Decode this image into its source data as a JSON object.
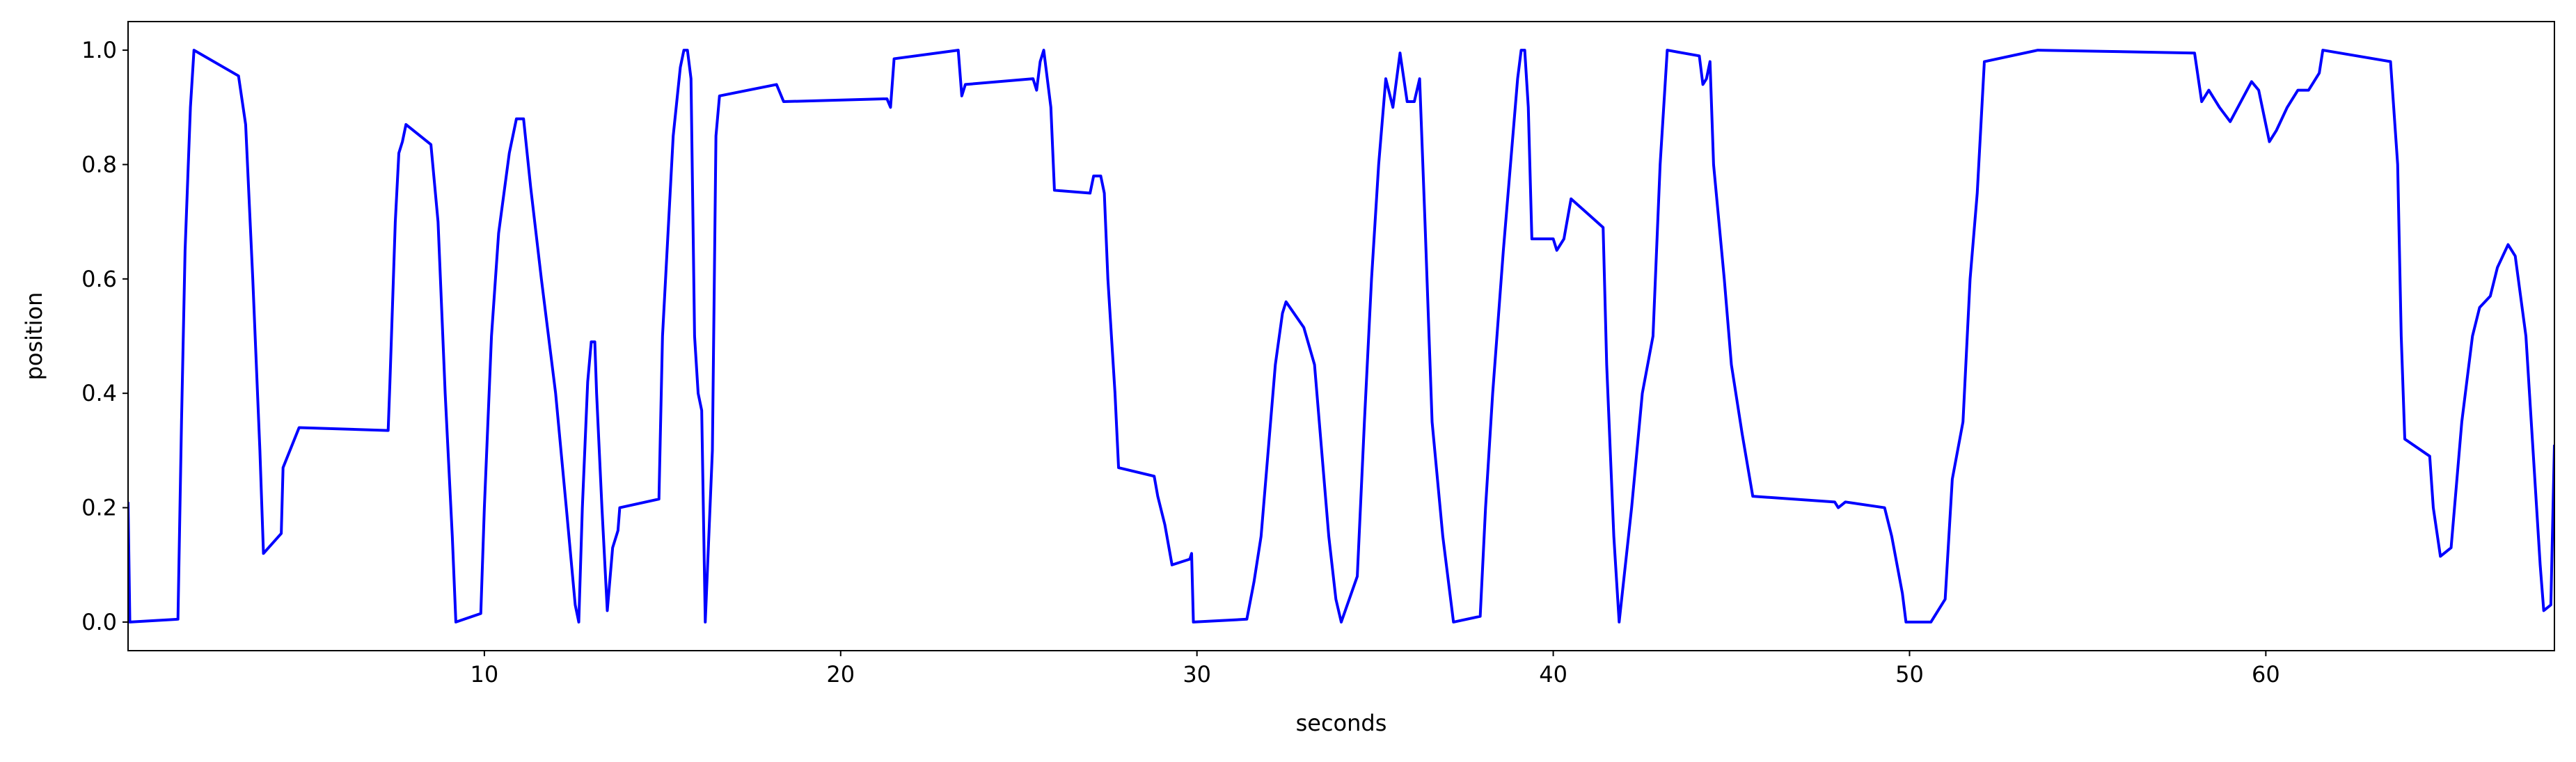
{
  "chart_data": {
    "type": "line",
    "xlabel": "seconds",
    "ylabel": "position",
    "xlim": [
      0,
      68.1
    ],
    "ylim": [
      -0.05,
      1.05
    ],
    "xticks": [
      10,
      20,
      30,
      40,
      50,
      60
    ],
    "yticks": [
      {
        "value": 0,
        "label": "0.0"
      },
      {
        "value": 0.2,
        "label": "0.2"
      },
      {
        "value": 0.4,
        "label": "0.4"
      },
      {
        "value": 0.6,
        "label": "0.6"
      },
      {
        "value": 0.8,
        "label": "0.8"
      },
      {
        "value": 1,
        "label": "1.0"
      }
    ],
    "grid": false,
    "series": [
      {
        "color": "#0000ff",
        "x": [
          0,
          0.05,
          1.4,
          1.5,
          1.6,
          1.75,
          1.85,
          3.1,
          3.3,
          3.5,
          3.7,
          3.8,
          4.3,
          4.35,
          4.8,
          7.3,
          7.35,
          7.5,
          7.6,
          7.7,
          7.8,
          8.5,
          8.7,
          8.9,
          9.1,
          9.2,
          9.9,
          10,
          10.2,
          10.4,
          10.7,
          10.9,
          11.1,
          11.3,
          11.6,
          12,
          12.3,
          12.55,
          12.65,
          12.75,
          12.9,
          13,
          13.1,
          13.15,
          13.3,
          13.45,
          13.6,
          13.75,
          13.8,
          14.9,
          15,
          15.3,
          15.5,
          15.6,
          15.7,
          15.8,
          15.9,
          16,
          16.1,
          16.2,
          16.4,
          16.5,
          16.6,
          18.2,
          18.4,
          21.3,
          21.4,
          21.5,
          23.3,
          23.4,
          23.5,
          25.4,
          25.5,
          25.6,
          25.7,
          25.9,
          26,
          27,
          27.1,
          27.3,
          27.4,
          27.5,
          27.7,
          27.8,
          28.8,
          28.9,
          29.1,
          29.3,
          29.8,
          29.85,
          29.9,
          31.4,
          31.6,
          31.8,
          32,
          32.2,
          32.4,
          32.5,
          33,
          33.3,
          33.5,
          33.7,
          33.9,
          34.05,
          34.5,
          34.7,
          34.9,
          35.1,
          35.3,
          35.5,
          35.7,
          35.9,
          36.1,
          36.25,
          36.4,
          36.6,
          36.9,
          37.1,
          37.2,
          37.95,
          38.1,
          38.3,
          38.6,
          38.8,
          39,
          39.1,
          39.2,
          39.3,
          39.4,
          40,
          40.1,
          40.3,
          40.5,
          41.4,
          41.5,
          41.7,
          41.85,
          42.2,
          42.5,
          42.8,
          43,
          43.2,
          44.1,
          44.2,
          44.3,
          44.4,
          44.5,
          44.8,
          45,
          45.3,
          45.6,
          47.9,
          48,
          48.2,
          49.3,
          49.5,
          49.8,
          49.9,
          50.6,
          51,
          51.2,
          51.5,
          51.7,
          51.9,
          52.1,
          53.6,
          58,
          58.2,
          58.4,
          58.7,
          59,
          59.3,
          59.6,
          59.8,
          60.1,
          60.3,
          60.6,
          60.9,
          61.2,
          61.5,
          61.6,
          63.5,
          63.7,
          63.8,
          63.9,
          64.6,
          64.7,
          64.9,
          65.2,
          65.5,
          65.8,
          66,
          66.3,
          66.5,
          66.8,
          67,
          67.3,
          67.5,
          67.7,
          67.8,
          68,
          68.1
        ],
        "values": [
          0.21,
          0,
          0.005,
          0.35,
          0.65,
          0.9,
          1,
          0.955,
          0.87,
          0.6,
          0.3,
          0.12,
          0.155,
          0.27,
          0.34,
          0.335,
          0.42,
          0.7,
          0.82,
          0.84,
          0.87,
          0.835,
          0.7,
          0.4,
          0.15,
          0,
          0.015,
          0.2,
          0.5,
          0.68,
          0.82,
          0.88,
          0.88,
          0.76,
          0.6,
          0.4,
          0.2,
          0.03,
          0,
          0.2,
          0.42,
          0.49,
          0.49,
          0.4,
          0.2,
          0.02,
          0.13,
          0.16,
          0.2,
          0.215,
          0.5,
          0.85,
          0.97,
          1,
          1,
          0.95,
          0.5,
          0.4,
          0.37,
          0,
          0.3,
          0.85,
          0.92,
          0.94,
          0.91,
          0.915,
          0.9,
          0.985,
          1,
          0.92,
          0.94,
          0.95,
          0.93,
          0.98,
          1,
          0.9,
          0.755,
          0.75,
          0.78,
          0.78,
          0.75,
          0.6,
          0.4,
          0.27,
          0.255,
          0.22,
          0.17,
          0.1,
          0.11,
          0.12,
          0,
          0.005,
          0.07,
          0.15,
          0.3,
          0.45,
          0.54,
          0.56,
          0.515,
          0.45,
          0.3,
          0.15,
          0.04,
          0,
          0.08,
          0.35,
          0.6,
          0.8,
          0.95,
          0.9,
          0.995,
          0.91,
          0.91,
          0.95,
          0.7,
          0.35,
          0.15,
          0.05,
          0,
          0.01,
          0.2,
          0.4,
          0.65,
          0.8,
          0.95,
          1,
          1,
          0.9,
          0.67,
          0.67,
          0.65,
          0.67,
          0.74,
          0.69,
          0.45,
          0.15,
          0,
          0.2,
          0.4,
          0.5,
          0.8,
          1,
          0.99,
          0.94,
          0.95,
          0.98,
          0.8,
          0.6,
          0.45,
          0.33,
          0.22,
          0.21,
          0.2,
          0.21,
          0.2,
          0.15,
          0.05,
          0,
          0,
          0.04,
          0.25,
          0.35,
          0.6,
          0.75,
          0.98,
          1,
          0.995,
          0.91,
          0.93,
          0.9,
          0.875,
          0.91,
          0.945,
          0.93,
          0.84,
          0.86,
          0.9,
          0.93,
          0.93,
          0.96,
          1,
          0.98,
          0.8,
          0.5,
          0.32,
          0.29,
          0.2,
          0.115,
          0.13,
          0.35,
          0.5,
          0.55,
          0.57,
          0.62,
          0.66,
          0.64,
          0.5,
          0.3,
          0.1,
          0.02,
          0.03,
          0.31
        ]
      }
    ]
  }
}
